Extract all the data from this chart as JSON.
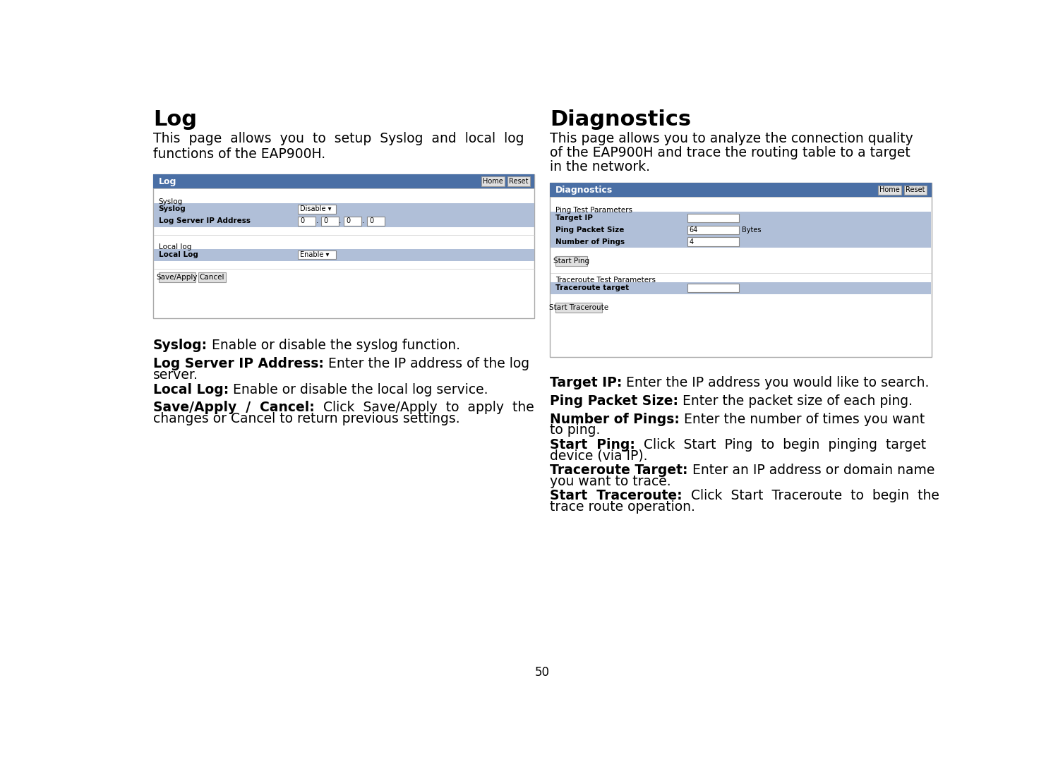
{
  "bg_color": "#ffffff",
  "page_number": "50",
  "left_column": {
    "title": "Log",
    "intro_lines": [
      "This  page  allows  you  to  setup  Syslog  and  local  log",
      "functions of the EAP900H."
    ],
    "panel": {
      "header": "Log",
      "header_bg": "#4a6fa5",
      "header_text_color": "#ffffff",
      "section1_label": "Syslog",
      "rows": [
        {
          "label": "Syslog",
          "value": "Disable ▾",
          "row_bg": "#b0bfd8",
          "type": "dropdown"
        },
        {
          "label": "Log Server IP Address",
          "value": "0.0.0.0",
          "row_bg": "#b0bfd8",
          "type": "ip"
        }
      ],
      "section2_label": "Local log",
      "rows2": [
        {
          "label": "Local Log",
          "value": "Enable ▾",
          "row_bg": "#b0bfd8",
          "type": "dropdown"
        }
      ],
      "buttons": [
        "Save/Apply",
        "Cancel"
      ]
    },
    "bullets": [
      {
        "bold": "Syslog:",
        "rest_line1": " Enable or disable the syslog function.",
        "rest_line2": ""
      },
      {
        "bold": "Log Server IP Address:",
        "rest_line1": " Enter the IP address of the log",
        "rest_line2": "server."
      },
      {
        "bold": "Local Log:",
        "rest_line1": " Enable or disable the local log service.",
        "rest_line2": ""
      },
      {
        "bold": "Save/Apply  /  Cancel:",
        "rest_line1": "  Click  Save/Apply  to  apply  the",
        "rest_line2": "changes or Cancel to return previous settings."
      }
    ]
  },
  "right_column": {
    "title": "Diagnostics",
    "intro_lines": [
      "This page allows you to analyze the connection quality",
      "of the EAP900H and trace the routing table to a target",
      "in the network."
    ],
    "panel": {
      "header": "Diagnostics",
      "header_bg": "#4a6fa5",
      "header_text_color": "#ffffff",
      "section1_label": "Ping Test Parameters",
      "rows": [
        {
          "label": "Target IP",
          "value": "",
          "row_bg": "#b0bfd8",
          "type": "input"
        },
        {
          "label": "Ping Packet Size",
          "value": "64",
          "suffix": "Bytes",
          "row_bg": "#b0bfd8",
          "type": "input"
        },
        {
          "label": "Number of Pings",
          "value": "4",
          "row_bg": "#b0bfd8",
          "type": "input"
        }
      ],
      "button1": "Start Ping",
      "section2_label": "Traceroute Test Parameters",
      "rows2": [
        {
          "label": "Traceroute target",
          "value": "",
          "row_bg": "#b0bfd8",
          "type": "input"
        }
      ],
      "button2": "Start Traceroute"
    },
    "bullets": [
      {
        "bold": "Target IP:",
        "rest_line1": " Enter the IP address you would like to search.",
        "rest_line2": ""
      },
      {
        "bold": "Ping Packet Size:",
        "rest_line1": " Enter the packet size of each ping.",
        "rest_line2": ""
      },
      {
        "bold": "Number of Pings:",
        "rest_line1": " Enter the number of times you want",
        "rest_line2": "to ping."
      },
      {
        "bold": "Start  Ping:",
        "rest_line1": "  Click  Start  Ping  to  begin  pinging  target",
        "rest_line2": "device (via IP)."
      },
      {
        "bold": "Traceroute Target:",
        "rest_line1": " Enter an IP address or domain name",
        "rest_line2": "you want to trace."
      },
      {
        "bold": "Start  Traceroute:",
        "rest_line1": "  Click  Start  Traceroute  to  begin  the",
        "rest_line2": "trace route operation."
      }
    ]
  }
}
